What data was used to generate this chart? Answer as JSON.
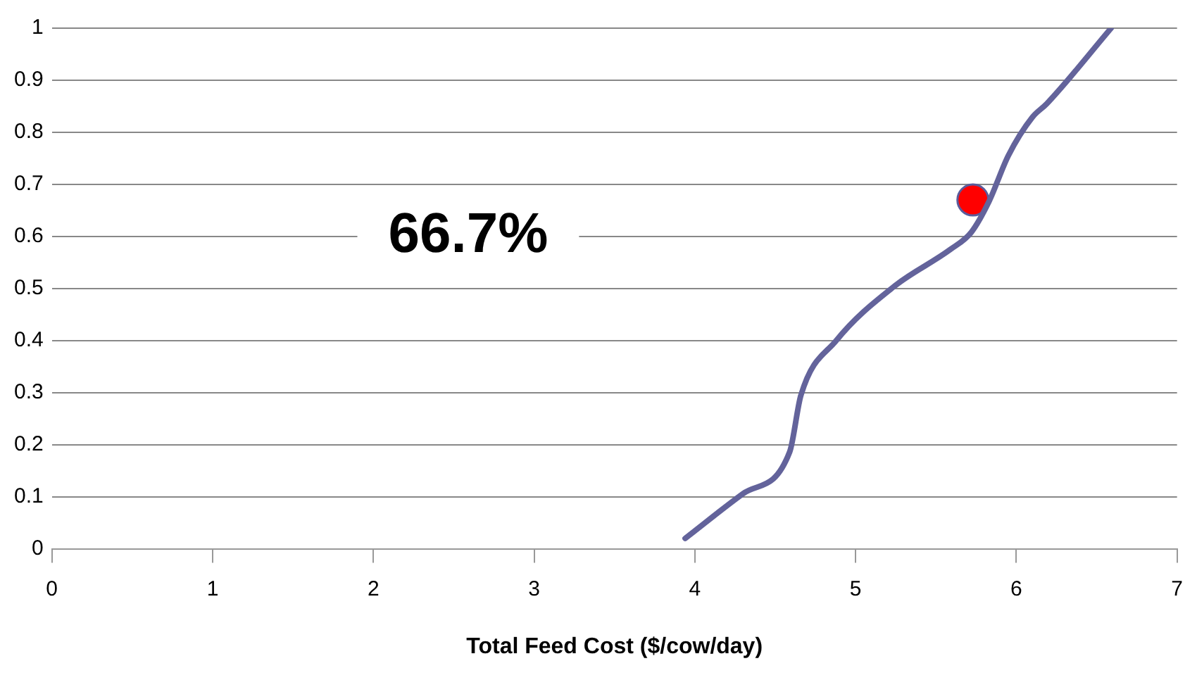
{
  "chart_data": {
    "type": "line",
    "xlabel": "Total Feed Cost ($/cow/day)",
    "annotations": [
      "66.7%"
    ],
    "xlim": [
      0,
      7
    ],
    "xticks": [
      0,
      1,
      2,
      3,
      4,
      5,
      6,
      7
    ],
    "ylim": [
      0,
      1
    ],
    "yticks": [
      0,
      0.1,
      0.2,
      0.3,
      0.4,
      0.5,
      0.6,
      0.7,
      0.8,
      0.9,
      1
    ],
    "grid": "y",
    "legend": false,
    "marker": "none",
    "line_style": "solid",
    "series": [
      {
        "color": "#63639b",
        "x": [
          3.94,
          4.3,
          4.59,
          4.66,
          4.88,
          5.24,
          5.59,
          5.72,
          5.83,
          5.95,
          6.1,
          6.19,
          6.59
        ],
        "values": [
          0.02,
          0.106,
          0.186,
          0.295,
          0.4,
          0.504,
          0.575,
          0.608,
          0.667,
          0.755,
          0.829,
          0.855,
          1.0
        ]
      },
      {
        "type": "scatter",
        "color": "#ff0000",
        "marker": "circle",
        "x": [
          5.73
        ],
        "values": [
          0.67
        ]
      }
    ]
  }
}
